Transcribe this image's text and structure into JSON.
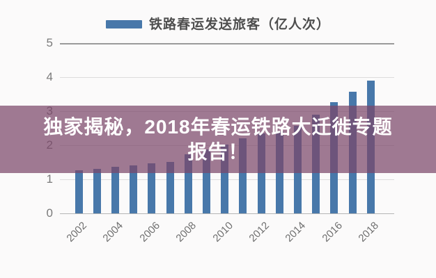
{
  "legend": {
    "label": "铁路春运发送旅客（亿人次）"
  },
  "banner": {
    "line1": "独家揭秘，2018年春运铁路大迁徙专题",
    "line2": "报告！"
  },
  "colors": {
    "bar": "#4878aa",
    "banner_overlay": "rgba(123,70,106,0.72)",
    "banner_text": "#ffffff",
    "grid_major": "#9a9a9a",
    "gridline": "#dcdcdc",
    "axis_text": "#7a7a7a",
    "background": "#fbfafa"
  },
  "chart_data": {
    "type": "bar",
    "title": "铁路春运发送旅客（亿人次）",
    "legend_entries": [
      "铁路春运发送旅客（亿人次）"
    ],
    "legend_position": "top",
    "categories": [
      2002,
      2003,
      2004,
      2005,
      2006,
      2007,
      2008,
      2009,
      2010,
      2011,
      2012,
      2013,
      2014,
      2015,
      2016,
      2017,
      2018
    ],
    "values": [
      1.27,
      1.31,
      1.37,
      1.41,
      1.46,
      1.51,
      1.73,
      1.88,
      2.03,
      2.2,
      2.35,
      2.4,
      2.58,
      2.89,
      3.26,
      3.58,
      3.9
    ],
    "xlabel": "",
    "ylabel": "",
    "ylim": [
      0,
      5
    ],
    "yticks": [
      0,
      1,
      2,
      3,
      4,
      5
    ],
    "x_tick_labels_shown": [
      "2002",
      "2004",
      "2006",
      "2008",
      "2010",
      "2012",
      "2014",
      "2016",
      "2018"
    ],
    "grid": true
  }
}
